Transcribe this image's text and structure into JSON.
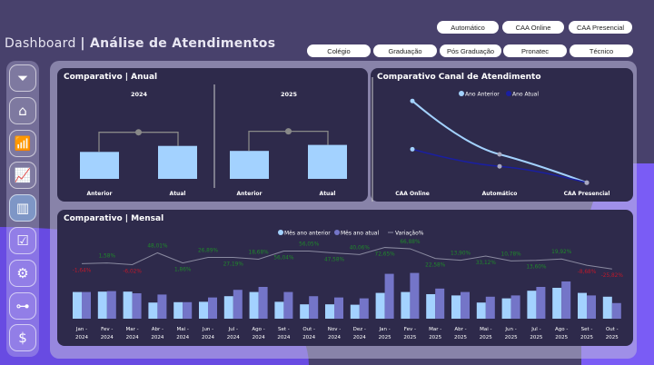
{
  "header": {
    "title_light": "Dashboard",
    "title_bold": "| Análise de Atendimentos"
  },
  "filters": {
    "channels": [
      "Automático",
      "CAA Online",
      "CAA Presencial"
    ],
    "levels": [
      "Colégio",
      "Graduação",
      "Pós Graduação",
      "Pronatec",
      "Técnico"
    ]
  },
  "sidebar": {
    "items": [
      {
        "icon": "filter-icon"
      },
      {
        "icon": "location-pin-icon"
      },
      {
        "icon": "growth-chart-icon"
      },
      {
        "icon": "presentation-icon"
      },
      {
        "icon": "bar-chart-icon",
        "active": true
      },
      {
        "icon": "monitor-check-icon"
      },
      {
        "icon": "hand-gears-icon"
      },
      {
        "icon": "flowchart-icon"
      },
      {
        "icon": "hand-money-icon"
      }
    ]
  },
  "colors": {
    "prev": "#a3d2ff",
    "curr": "#7475c8",
    "positive": "#1f8a2a",
    "negative": "#c0182a",
    "line": "#8a8aa0",
    "atual_line": "#1a1fa0"
  },
  "chart_data": [
    {
      "type": "bar",
      "title": "Comparativo | Anual",
      "panels": [
        {
          "title": "2024",
          "categories": [
            "Anterior",
            "Atual"
          ],
          "values": [
            27,
            33
          ]
        },
        {
          "title": "2025",
          "categories": [
            "Anterior",
            "Atual"
          ],
          "values": [
            28,
            34
          ]
        }
      ]
    },
    {
      "type": "line",
      "title": "Comparativo Canal de Atendimento",
      "categories": [
        "CAA Online",
        "Automático",
        "CAA Presencial"
      ],
      "series": [
        {
          "name": "Ano Anterior",
          "values": [
            247,
            100,
            22
          ]
        },
        {
          "name": "Ano Atual",
          "values": [
            114,
            67,
            22
          ]
        }
      ]
    },
    {
      "type": "bar",
      "title": "Comparativo | Mensal",
      "legend": [
        "Mês ano anterior",
        "Mês ano atual",
        "Variação%"
      ],
      "categories": [
        "Jan - 2024",
        "Fev - 2024",
        "Mar - 2024",
        "Abr - 2024",
        "Mai - 2024",
        "Jun - 2024",
        "Jul - 2024",
        "Ago - 2024",
        "Set - 2024",
        "Out - 2024",
        "Nov - 2024",
        "Dez - 2024",
        "Jan - 2025",
        "Fev - 2025",
        "Mar - 2025",
        "Abr - 2025",
        "Mai - 2025",
        "Jun - 2025",
        "Jul - 2025",
        "Ago - 2025",
        "Set - 2025",
        "Out - 2025"
      ],
      "series": [
        {
          "name": "Mês ano anterior",
          "values": [
            21,
            21.3,
            21.3,
            12.7,
            13,
            13.3,
            17.7,
            21,
            13.3,
            11.3,
            11.3,
            11,
            20.3,
            21,
            19.3,
            18.3,
            12.7,
            16,
            22,
            24.3,
            20.3,
            17.3
          ]
        },
        {
          "name": "Mês ano atual",
          "values": [
            21,
            21.7,
            20,
            19,
            13,
            16.7,
            22.7,
            25,
            21,
            17.7,
            16.7,
            16,
            35.3,
            36,
            23.7,
            21,
            17.3,
            18.3,
            25,
            29.3,
            18.3,
            12.3
          ]
        },
        {
          "name": "Variação%",
          "values": [
            -1.64,
            1.58,
            -6.02,
            48.01,
            1.86,
            26.89,
            27.19,
            18.68,
            56.04,
            56.05,
            47.58,
            40.06,
            72.65,
            66.88,
            22.58,
            13.9,
            33.12,
            10.78,
            13.6,
            19.92,
            -8.68,
            -25.82
          ]
        }
      ],
      "labels": [
        "-1,64%",
        "1,58%",
        "-6,02%",
        "48,01%",
        "1,86%",
        "26,89%",
        "27,19%",
        "18,68%",
        "56,04%",
        "56,05%",
        "47,58%",
        "40,06%",
        "72,65%",
        "66,88%",
        "22,58%",
        "13,90%",
        "33,12%",
        "10,78%",
        "13,60%",
        "19,92%",
        "-8,68%",
        "-25,82%"
      ]
    }
  ]
}
